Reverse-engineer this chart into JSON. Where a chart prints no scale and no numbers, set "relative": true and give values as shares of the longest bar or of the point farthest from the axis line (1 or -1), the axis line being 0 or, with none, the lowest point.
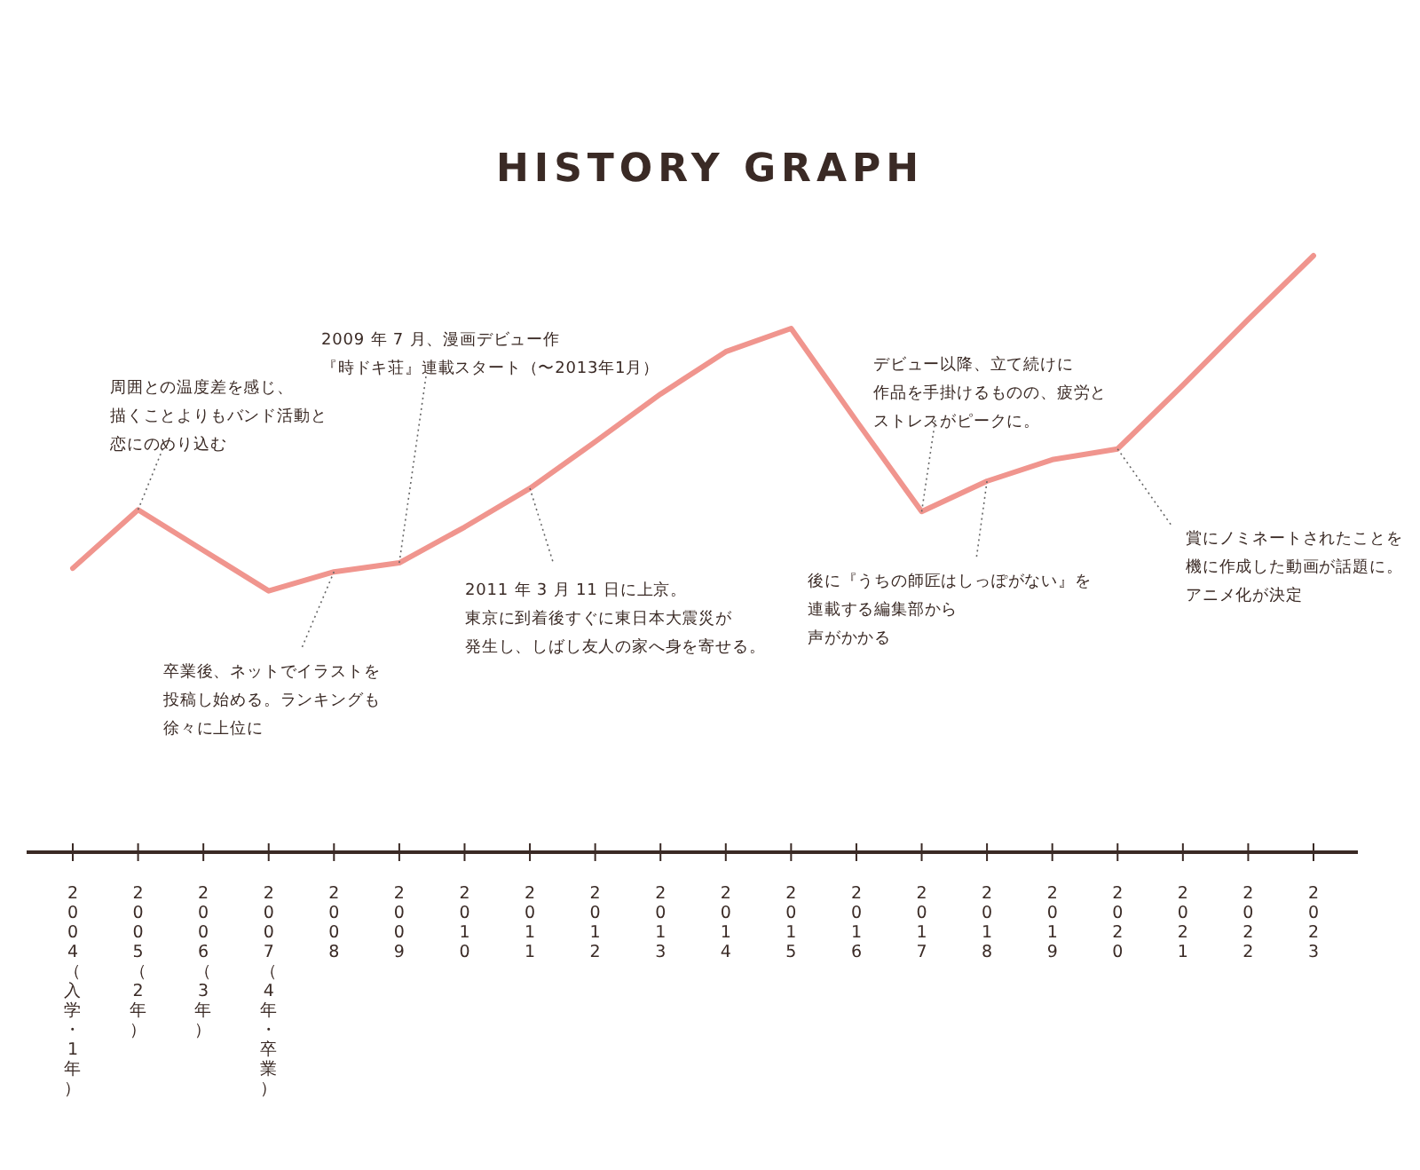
{
  "chart_data": {
    "type": "line",
    "title": "HISTORY GRAPH",
    "relative": true,
    "color": "#f0958e",
    "categories": [
      "2004（入学・1年）",
      "2005（2年）",
      "2006（3年）",
      "2007（4年・卒業）",
      "2008",
      "2009",
      "2010",
      "2011",
      "2012",
      "2013",
      "2014",
      "2015",
      "2016",
      "2017",
      "2018",
      "2019",
      "2020",
      "2021",
      "2022",
      "2023"
    ],
    "values": [
      0.476,
      0.574,
      0.506,
      0.438,
      0.47,
      0.485,
      0.545,
      0.61,
      0.688,
      0.768,
      0.839,
      0.878,
      0.723,
      0.571,
      0.622,
      0.658,
      0.676,
      0.783,
      0.893,
      1
    ],
    "annotations": [
      {
        "text": "周囲との温度差を感じ、描くことよりもバンド活動と恋にのめり込む",
        "x": "2005（2年）",
        "y": 0.574
      },
      {
        "text": "卒業後、ネットでイラストを投稿し始める。ランキングも徐々に上位に",
        "x": "2008",
        "y": 0.47
      },
      {
        "text": "2009 年 7 月、漫画デビュー作『時ドキ荘』連載スタート（〜2013年1月）",
        "x": "2009",
        "y": 0.485
      },
      {
        "text": "2011 年 3 月 11 日に上京。東京に到着後すぐに東日本大震災が発生し、しばし友人の家へ身を寄せる。",
        "x": "2011",
        "y": 0.61
      },
      {
        "text": "デビュー以降、立て続けに作品を手掛けるものの、疲労とストレスがピークに。",
        "x": "2017",
        "y": 0.571
      },
      {
        "text": "後に『うちの師匠はしっぽがない』を連載する編集部から声がかかる",
        "x": "2018",
        "y": 0.622
      },
      {
        "text": "賞にノミネートされたことを機に作成した動画が話題に。アニメ化が決定",
        "x": "2020",
        "y": 0.676
      }
    ]
  }
}
